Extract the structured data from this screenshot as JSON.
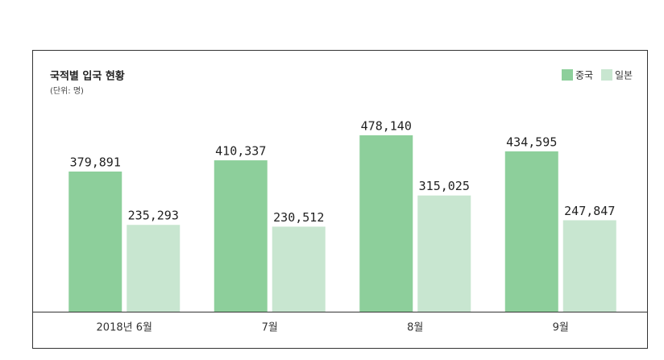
{
  "chart_data": {
    "type": "bar",
    "title": "국적별 입국 현황",
    "subtitle": "(단위: 명)",
    "categories": [
      "2018년 6월",
      "7월",
      "8월",
      "9월"
    ],
    "series": [
      {
        "name": "중국",
        "color": "#8dcf9b",
        "values": [
          379891,
          410337,
          478140,
          434595
        ],
        "value_labels": [
          "379,891",
          "410,337",
          "478,140",
          "434,595"
        ]
      },
      {
        "name": "일본",
        "color": "#c8e6d0",
        "values": [
          235293,
          230512,
          315025,
          247847
        ],
        "value_labels": [
          "235,293",
          "230,512",
          "315,025",
          "247,847"
        ]
      }
    ]
  }
}
